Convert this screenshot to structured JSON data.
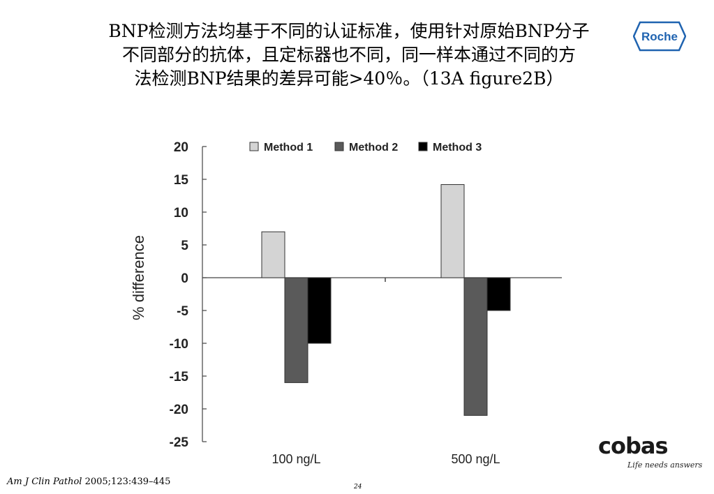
{
  "slide": {
    "title_lines": [
      "BNP检测方法均基于不同的认证标准，使用针对原始BNP分子",
      "不同部分的抗体，且定标器也不同，同一样本通过不同的方",
      "法检测BNP结果的差异可能>40％。（13A figure2B）"
    ],
    "citation_journal": "Am J Clin Pathol",
    "citation_rest": " 2005;123:439–445",
    "page_number": "24"
  },
  "logos": {
    "roche_text": "Roche",
    "cobas_text": "cobas",
    "cobas_tagline": "Life needs answers"
  },
  "colors": {
    "method1": "#d4d4d4",
    "method2": "#5a5a5a",
    "method3": "#000000",
    "roche_blue": "#1f63b0"
  },
  "chart_data": {
    "type": "bar",
    "categories": [
      "100 ng/L",
      "500 ng/L"
    ],
    "series": [
      {
        "name": "Method 1",
        "values": [
          7,
          14.2
        ]
      },
      {
        "name": "Method 2",
        "values": [
          -16,
          -21
        ]
      },
      {
        "name": "Method 3",
        "values": [
          -10,
          -5
        ]
      }
    ],
    "xlabel": "",
    "ylabel": "% difference",
    "ylim": [
      -25,
      20
    ],
    "yticks": [
      20,
      15,
      10,
      5,
      0,
      -5,
      -10,
      -15,
      -20,
      -25
    ],
    "legend_position": "top",
    "grid": false
  }
}
